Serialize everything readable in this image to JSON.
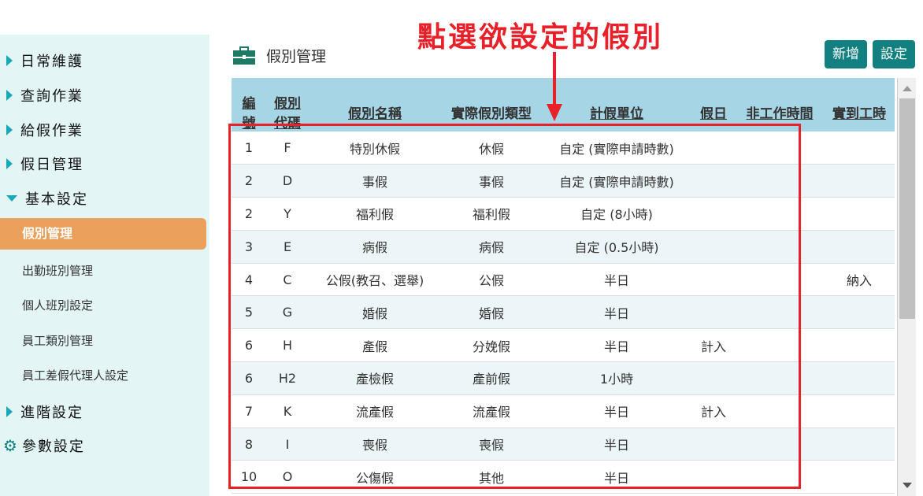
{
  "annotation": "點選欲設定的假別",
  "sidebar": {
    "items": [
      {
        "label": "日常維護",
        "state": "collapsed"
      },
      {
        "label": "查詢作業",
        "state": "collapsed"
      },
      {
        "label": "給假作業",
        "state": "collapsed"
      },
      {
        "label": "假日管理",
        "state": "collapsed"
      },
      {
        "label": "基本設定",
        "state": "expanded"
      },
      {
        "label": "進階設定",
        "state": "collapsed"
      },
      {
        "label": "參數設定",
        "icon": "gear-icon"
      }
    ],
    "subitems": [
      "假別管理",
      "出勤班別管理",
      "個人班別設定",
      "員工類別管理",
      "員工差假代理人設定"
    ]
  },
  "page": {
    "title": "假別管理",
    "add_label": "新增",
    "settings_label": "設定"
  },
  "table": {
    "headers": [
      [
        "編",
        "號"
      ],
      [
        "假別",
        "代碼"
      ],
      "假別名稱",
      "實際假別類型",
      "計假單位",
      "假日",
      "非工作時間",
      "實到工時"
    ],
    "rows": [
      [
        "1",
        "F",
        "特別休假",
        "休假",
        "自定 (實際申請時數)",
        "",
        "",
        ""
      ],
      [
        "2",
        "D",
        "事假",
        "事假",
        "自定 (實際申請時數)",
        "",
        "",
        ""
      ],
      [
        "2",
        "Y",
        "福利假",
        "福利假",
        "自定 (8小時)",
        "",
        "",
        ""
      ],
      [
        "3",
        "E",
        "病假",
        "病假",
        "自定 (0.5小時)",
        "",
        "",
        ""
      ],
      [
        "4",
        "C",
        "公假(教召、選舉)",
        "公假",
        "半日",
        "",
        "",
        "納入"
      ],
      [
        "5",
        "G",
        "婚假",
        "婚假",
        "半日",
        "",
        "",
        ""
      ],
      [
        "6",
        "H",
        "產假",
        "分娩假",
        "半日",
        "計入",
        "",
        ""
      ],
      [
        "6",
        "H2",
        "產檢假",
        "產前假",
        "1小時",
        "",
        "",
        ""
      ],
      [
        "7",
        "K",
        "流產假",
        "流產假",
        "半日",
        "計入",
        "",
        ""
      ],
      [
        "8",
        "I",
        "喪假",
        "喪假",
        "半日",
        "",
        "",
        ""
      ],
      [
        "10",
        "O",
        "公傷假",
        "其他",
        "半日",
        "",
        "",
        ""
      ]
    ]
  },
  "colors": {
    "accent": "#127f80",
    "active": "#eba05c",
    "header": "#a6d5e6",
    "annotation": "#e8202a"
  }
}
